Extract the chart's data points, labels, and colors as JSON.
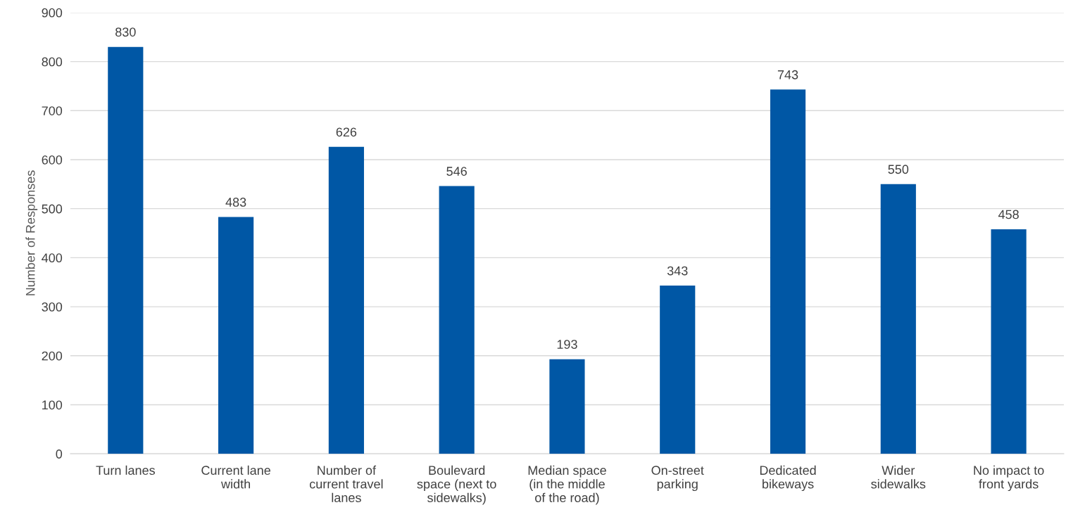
{
  "chart_data": {
    "type": "bar",
    "ylabel": "Number of Responses",
    "categories": [
      "Turn lanes",
      "Current lane\nwidth",
      "Number of\ncurrent travel\nlanes",
      "Boulevard\nspace (next to\nsidewalks)",
      "Median space\n(in the middle\nof the road)",
      "On-street\nparking",
      "Dedicated\nbikeways",
      "Wider\nsidewalks",
      "No impact to\nfront yards"
    ],
    "values": [
      830,
      483,
      626,
      546,
      193,
      343,
      743,
      550,
      458
    ],
    "color": "#0057a5",
    "ylim": [
      0,
      900
    ],
    "yticks": [
      0,
      100,
      200,
      300,
      400,
      500,
      600,
      700,
      800,
      900
    ],
    "grid": "y",
    "data_labels": true
  }
}
